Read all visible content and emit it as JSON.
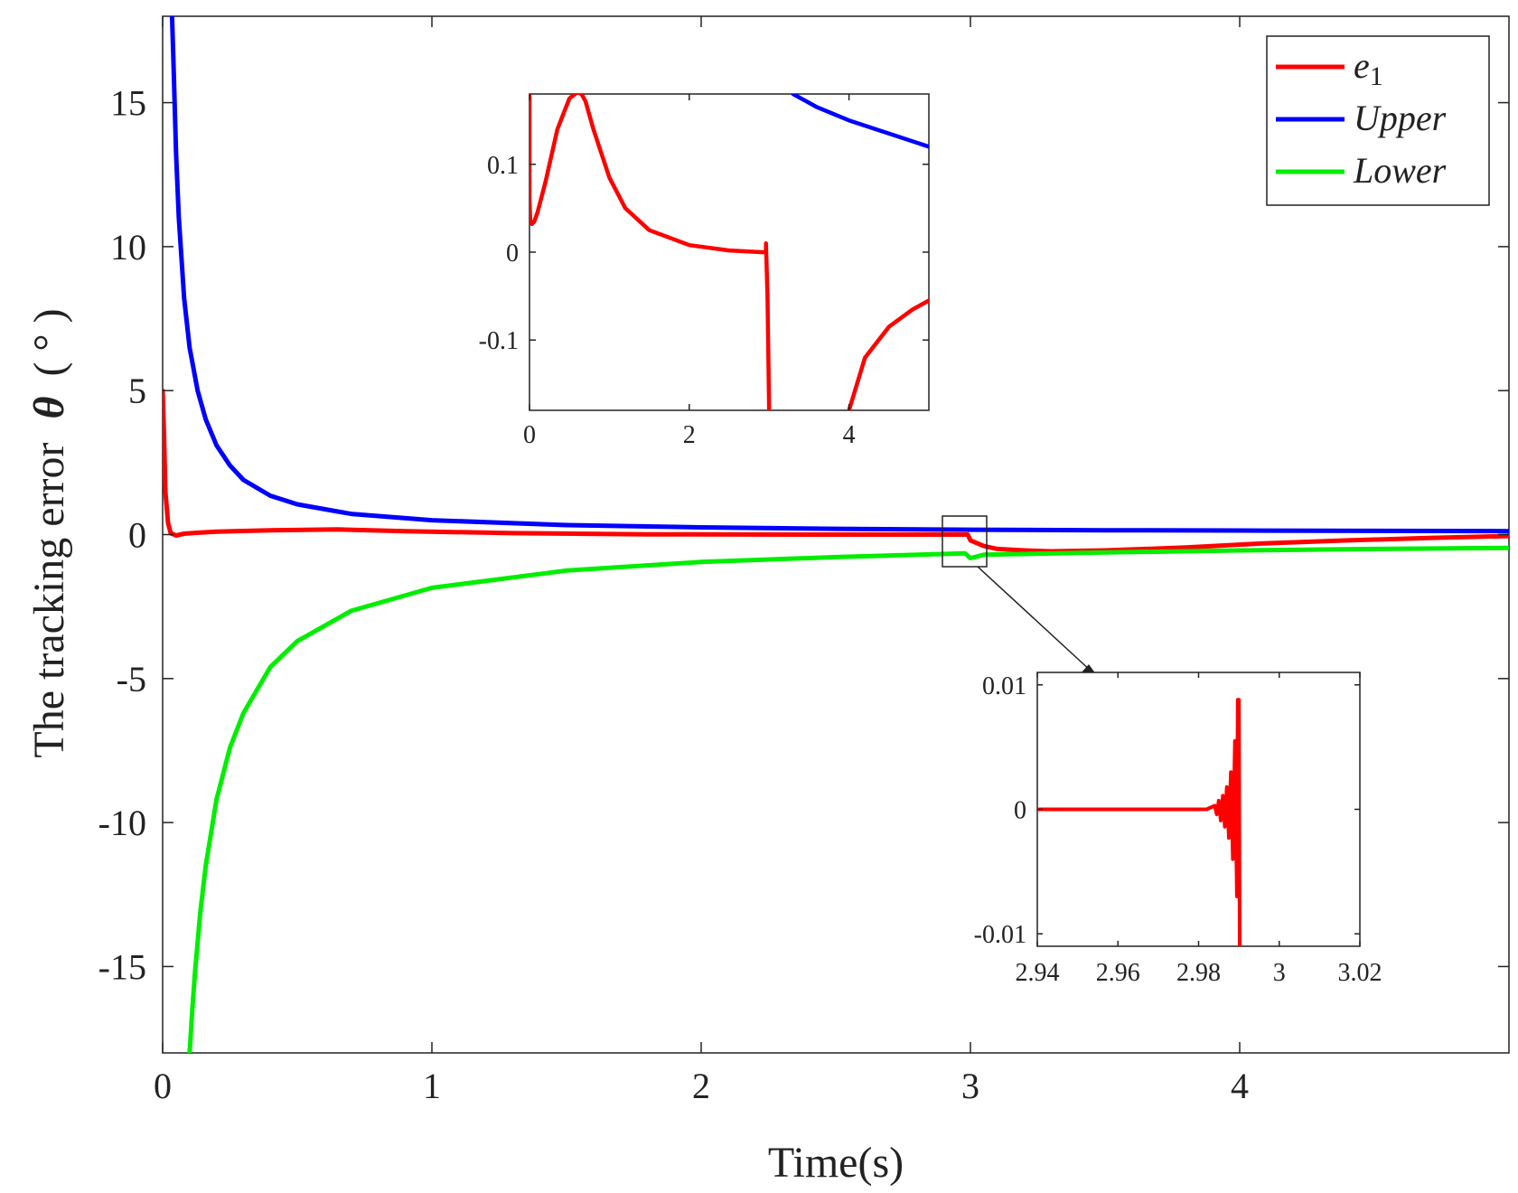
{
  "chart_data": [
    {
      "id": "main",
      "type": "line",
      "title": "",
      "xlabel": "Time(s)",
      "ylabel": "The tracking error",
      "ylabel_symbol": "θ",
      "ylabel_unit": "( ° )",
      "xlim": [
        0,
        5
      ],
      "ylim": [
        -18,
        18
      ],
      "xticks": [
        0,
        1,
        2,
        3,
        4
      ],
      "yticks": [
        -15,
        -10,
        -5,
        0,
        5,
        10,
        15
      ],
      "grid": false,
      "legend_position": "top-right",
      "series": [
        {
          "name": "e1",
          "legend_label": "e",
          "legend_subscript": "1",
          "color": "#ff0000",
          "x": [
            0,
            0.005,
            0.01,
            0.02,
            0.03,
            0.05,
            0.08,
            0.12,
            0.2,
            0.4,
            0.65,
            0.9,
            1.3,
            1.8,
            2.4,
            2.99,
            3.0,
            3.05,
            3.1,
            3.2,
            3.3,
            3.5,
            3.8,
            4.1,
            4.4,
            4.7,
            5.0
          ],
          "y": [
            5,
            3.5,
            1.5,
            0.4,
            0.05,
            -0.03,
            0.03,
            0.06,
            0.1,
            0.15,
            0.18,
            0.12,
            0.05,
            0.01,
            0.0,
            0.0,
            -0.2,
            -0.4,
            -0.5,
            -0.55,
            -0.58,
            -0.55,
            -0.45,
            -0.3,
            -0.2,
            -0.12,
            -0.05
          ]
        },
        {
          "name": "Upper",
          "legend_label": "Upper",
          "color": "#0000ff",
          "x": [
            0.035,
            0.04,
            0.05,
            0.06,
            0.08,
            0.1,
            0.13,
            0.16,
            0.2,
            0.25,
            0.3,
            0.4,
            0.5,
            0.7,
            1.0,
            1.5,
            2.0,
            2.5,
            3.0,
            3.5,
            4.0,
            4.5,
            5.0
          ],
          "y": [
            18,
            16.5,
            13.2,
            11.0,
            8.2,
            6.5,
            5.0,
            4.0,
            3.1,
            2.4,
            1.9,
            1.35,
            1.05,
            0.72,
            0.5,
            0.33,
            0.25,
            0.2,
            0.17,
            0.15,
            0.14,
            0.13,
            0.12
          ]
        },
        {
          "name": "Lower",
          "legend_label": "Lower",
          "color": "#00ee00",
          "x": [
            0.1,
            0.11,
            0.12,
            0.14,
            0.16,
            0.2,
            0.25,
            0.3,
            0.4,
            0.5,
            0.7,
            1.0,
            1.5,
            2.0,
            2.5,
            2.98,
            3.0,
            3.05,
            3.5,
            4.0,
            4.5,
            5.0
          ],
          "y": [
            -18,
            -16.5,
            -15.2,
            -13.1,
            -11.5,
            -9.2,
            -7.4,
            -6.2,
            -4.6,
            -3.7,
            -2.65,
            -1.85,
            -1.25,
            -0.95,
            -0.78,
            -0.65,
            -0.82,
            -0.7,
            -0.62,
            -0.55,
            -0.5,
            -0.46
          ]
        }
      ],
      "annotations": [
        "zoom box around t≈3.0 with arrow pointing to lower-right inset"
      ]
    },
    {
      "id": "inset1",
      "type": "line",
      "xlim": [
        0,
        5
      ],
      "ylim": [
        -0.18,
        0.18
      ],
      "xticks": [
        0,
        2,
        4
      ],
      "yticks": [
        -0.1,
        0,
        0.1
      ],
      "ytick_labels": [
        "-0.1",
        "0",
        "0.1"
      ],
      "series": [
        {
          "name": "e1",
          "color": "#ff0000",
          "segments": [
            {
              "x": [
                0.0,
                0.0,
                0.01,
                0.03,
                0.06,
                0.1,
                0.2,
                0.35,
                0.5,
                0.6,
                0.65,
                0.7,
                0.8,
                1.0,
                1.2,
                1.5,
                2.0,
                2.5,
                2.9
              ],
              "y": [
                0.18,
                0.06,
                0.035,
                0.032,
                0.035,
                0.045,
                0.08,
                0.14,
                0.175,
                0.182,
                0.18,
                0.172,
                0.14,
                0.085,
                0.05,
                0.025,
                0.008,
                0.002,
                0.0
              ]
            },
            {
              "x": [
                2.9,
                2.96,
                2.96,
                2.98,
                3.0
              ],
              "y": [
                0.0,
                0.0,
                0.01,
                -0.05,
                -0.18
              ]
            },
            {
              "x": [
                4.0,
                4.2,
                4.5,
                4.8,
                5.0
              ],
              "y": [
                -0.18,
                -0.12,
                -0.085,
                -0.065,
                -0.055
              ]
            }
          ]
        },
        {
          "name": "Upper",
          "color": "#0000ff",
          "segments": [
            {
              "x": [
                3.3,
                3.6,
                4.0,
                4.5,
                5.0
              ],
              "y": [
                0.18,
                0.165,
                0.15,
                0.135,
                0.12
              ]
            }
          ]
        }
      ]
    },
    {
      "id": "inset2",
      "type": "line",
      "xlim": [
        2.94,
        3.02
      ],
      "ylim": [
        -0.011,
        0.011
      ],
      "xticks": [
        2.94,
        2.96,
        2.98,
        3.0,
        3.02
      ],
      "xtick_labels": [
        "2.94",
        "2.96",
        "2.98",
        "3",
        "3.02"
      ],
      "yticks": [
        -0.01,
        0,
        0.01
      ],
      "ytick_labels": [
        "-0.01",
        "0",
        "0.01"
      ],
      "series": [
        {
          "name": "e1",
          "color": "#ff0000",
          "x": [
            2.94,
            2.97,
            2.978,
            2.982,
            2.984,
            2.9845,
            2.985,
            2.9855,
            2.986,
            2.9865,
            2.987,
            2.9875,
            2.988,
            2.9885,
            2.989,
            2.9895,
            2.9897,
            2.99,
            2.9902,
            2.9904
          ],
          "y": [
            0,
            0,
            0,
            0,
            0.0003,
            -0.0004,
            0.0007,
            -0.0009,
            0.0011,
            -0.0014,
            0.0018,
            -0.0023,
            0.003,
            -0.004,
            0.0055,
            -0.007,
            0.0088,
            0.0088,
            -0.011,
            -0.011
          ]
        }
      ]
    }
  ]
}
